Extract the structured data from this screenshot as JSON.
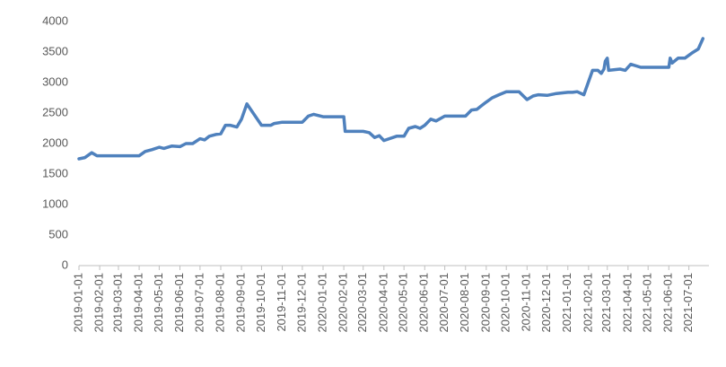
{
  "chart_data": {
    "type": "line",
    "x": [
      "2019-01-01",
      "2019-01-10",
      "2019-01-20",
      "2019-01-28",
      "2019-02-15",
      "2019-03-15",
      "2019-04-01",
      "2019-04-10",
      "2019-04-20",
      "2019-05-01",
      "2019-05-08",
      "2019-05-20",
      "2019-06-01",
      "2019-06-10",
      "2019-06-20",
      "2019-07-01",
      "2019-07-08",
      "2019-07-15",
      "2019-07-25",
      "2019-08-01",
      "2019-08-08",
      "2019-08-15",
      "2019-08-25",
      "2019-09-01",
      "2019-09-09",
      "2019-10-01",
      "2019-10-15",
      "2019-10-20",
      "2019-11-01",
      "2019-12-01",
      "2019-12-10",
      "2019-12-18",
      "2020-01-01",
      "2020-02-01",
      "2020-02-03",
      "2020-03-01",
      "2020-03-10",
      "2020-03-18",
      "2020-03-25",
      "2020-04-01",
      "2020-04-20",
      "2020-05-01",
      "2020-05-08",
      "2020-05-18",
      "2020-05-25",
      "2020-06-01",
      "2020-06-10",
      "2020-06-18",
      "2020-07-01",
      "2020-08-01",
      "2020-08-10",
      "2020-08-18",
      "2020-08-25",
      "2020-09-01",
      "2020-09-10",
      "2020-09-20",
      "2020-10-01",
      "2020-10-20",
      "2020-11-01",
      "2020-11-10",
      "2020-11-18",
      "2020-12-01",
      "2020-12-15",
      "2021-01-01",
      "2021-01-08",
      "2021-01-15",
      "2021-01-25",
      "2021-02-07",
      "2021-02-15",
      "2021-02-20",
      "2021-02-24",
      "2021-02-26",
      "2021-03-01",
      "2021-03-03",
      "2021-03-20",
      "2021-03-28",
      "2021-04-05",
      "2021-04-20",
      "2021-06-01",
      "2021-06-03",
      "2021-06-06",
      "2021-06-15",
      "2021-06-25",
      "2021-07-05",
      "2021-07-15",
      "2021-07-22"
    ],
    "series": [
      {
        "name": "value",
        "color": "#4f81bd",
        "values": [
          1750,
          1770,
          1850,
          1800,
          1800,
          1800,
          1800,
          1870,
          1900,
          1940,
          1920,
          1960,
          1950,
          2000,
          2000,
          2080,
          2060,
          2120,
          2150,
          2160,
          2300,
          2300,
          2270,
          2400,
          2650,
          2300,
          2300,
          2330,
          2350,
          2350,
          2450,
          2480,
          2440,
          2440,
          2200,
          2200,
          2180,
          2100,
          2130,
          2050,
          2120,
          2120,
          2250,
          2280,
          2250,
          2300,
          2400,
          2370,
          2450,
          2450,
          2550,
          2560,
          2620,
          2680,
          2750,
          2800,
          2850,
          2850,
          2720,
          2780,
          2800,
          2790,
          2820,
          2840,
          2840,
          2850,
          2800,
          3200,
          3200,
          3150,
          3220,
          3350,
          3400,
          3200,
          3220,
          3200,
          3300,
          3250,
          3250,
          3400,
          3320,
          3400,
          3400,
          3480,
          3550,
          3720
        ]
      }
    ],
    "xlim": [
      "2019-01-01",
      "2021-07-31"
    ],
    "xticks": [
      "2019-01-01",
      "2019-02-01",
      "2019-03-01",
      "2019-04-01",
      "2019-05-01",
      "2019-06-01",
      "2019-07-01",
      "2019-08-01",
      "2019-09-01",
      "2019-10-01",
      "2019-11-01",
      "2019-12-01",
      "2020-01-01",
      "2020-02-01",
      "2020-03-01",
      "2020-04-01",
      "2020-05-01",
      "2020-06-01",
      "2020-07-01",
      "2020-08-01",
      "2020-09-01",
      "2020-10-01",
      "2020-11-01",
      "2020-12-01",
      "2021-01-01",
      "2021-02-01",
      "2021-03-01",
      "2021-04-01",
      "2021-05-01",
      "2021-06-01",
      "2021-07-01"
    ],
    "ylim": [
      0,
      4000
    ],
    "yticks": [
      0,
      500,
      1000,
      1500,
      2000,
      2500,
      3000,
      3500,
      4000
    ],
    "grid": false
  }
}
